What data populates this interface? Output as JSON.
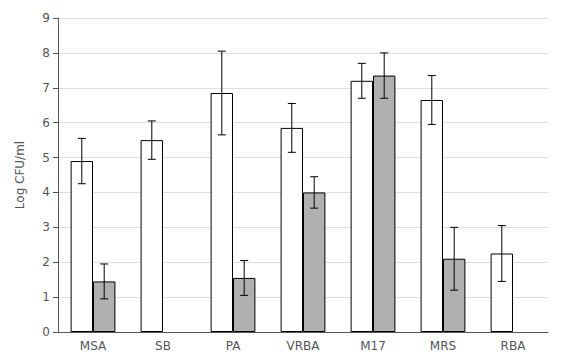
{
  "chart_data": {
    "type": "bar",
    "categories": [
      "MSA",
      "SB",
      "PA",
      "VRBA",
      "M17",
      "MRS",
      "RBA"
    ],
    "series": [
      {
        "color": "#ffffff",
        "values": [
          4.9,
          5.5,
          6.85,
          5.85,
          7.2,
          6.65,
          2.25
        ],
        "errors": [
          0.65,
          0.55,
          1.2,
          0.7,
          0.5,
          0.7,
          0.8
        ]
      },
      {
        "color": "#b0b0b0",
        "values": [
          1.45,
          null,
          1.55,
          4.0,
          7.35,
          2.1,
          null
        ],
        "errors": [
          0.5,
          null,
          0.5,
          0.45,
          0.65,
          0.9,
          null
        ]
      }
    ],
    "ylabel": "Log CFU/ml",
    "ylim": [
      0,
      9
    ],
    "yticks": [
      0,
      1,
      2,
      3,
      4,
      5,
      6,
      7,
      8,
      9
    ],
    "grid": true
  }
}
